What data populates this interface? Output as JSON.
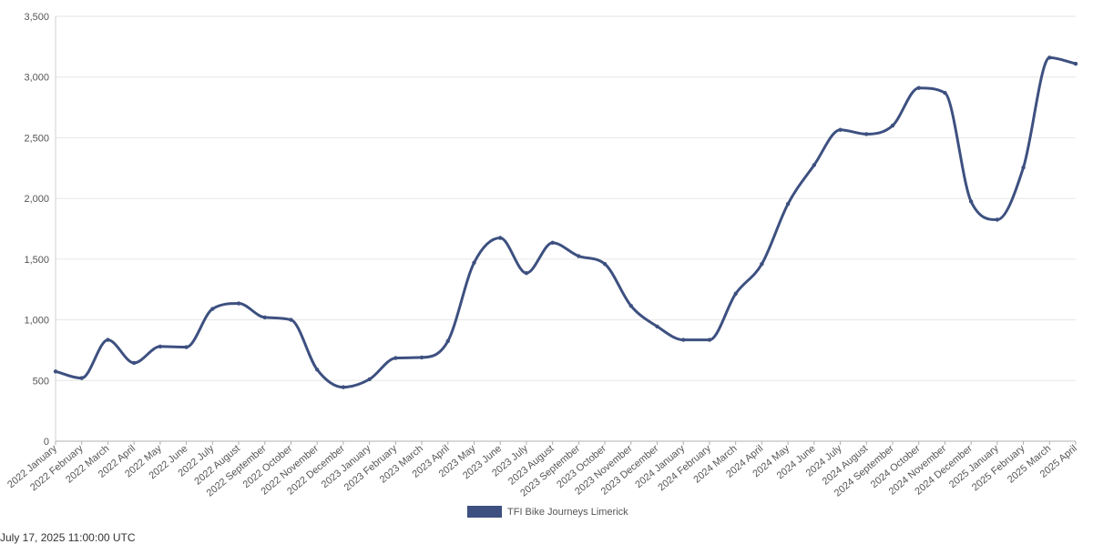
{
  "chart_data": {
    "type": "line",
    "categories": [
      "2022 January",
      "2022 February",
      "2022 March",
      "2022 April",
      "2022 May",
      "2022 June",
      "2022 July",
      "2022 August",
      "2022 September",
      "2022 October",
      "2022 November",
      "2022 December",
      "2023 January",
      "2023 February",
      "2023 March",
      "2023 April",
      "2023 May",
      "2023 June",
      "2023 July",
      "2023 August",
      "2023 September",
      "2023 October",
      "2023 November",
      "2023 December",
      "2024 January",
      "2024 February",
      "2024 March",
      "2024 April",
      "2024 May",
      "2024 June",
      "2024 July",
      "2024 August",
      "2024 September",
      "2024 October",
      "2024 November",
      "2024 December",
      "2025 January",
      "2025 February",
      "2025 March",
      "2025 April"
    ],
    "series": [
      {
        "name": "TFI Bike Journeys Limerick",
        "color": "#3d5080",
        "values": [
          575,
          520,
          835,
          645,
          780,
          775,
          1090,
          1135,
          1020,
          1000,
          590,
          445,
          510,
          685,
          690,
          825,
          1470,
          1675,
          1385,
          1635,
          1525,
          1460,
          1115,
          945,
          835,
          835,
          1215,
          1460,
          1955,
          2275,
          2565,
          2530,
          2600,
          2910,
          2870,
          1975,
          1825,
          2255,
          3160,
          3110
        ]
      }
    ],
    "ylim": [
      0,
      3500
    ],
    "yticks": [
      0,
      500,
      1000,
      1500,
      2000,
      2500,
      3000,
      3500
    ],
    "ytick_labels": [
      "0",
      "500",
      "1,000",
      "1,500",
      "2,000",
      "2,500",
      "3,000",
      "3,500"
    ],
    "grid": true,
    "legend_position": "bottom-center"
  },
  "footer": {
    "timestamp": "July 17, 2025 11:00:00 UTC"
  }
}
